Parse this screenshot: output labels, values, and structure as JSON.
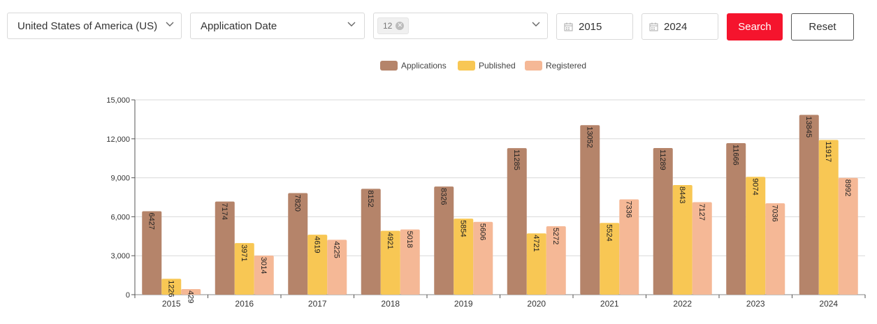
{
  "filters": {
    "country": "United States of America (US)",
    "date_type": "Application Date",
    "class_tag": "12",
    "date_from": "2015",
    "date_to": "2024"
  },
  "buttons": {
    "search": "Search",
    "reset": "Reset"
  },
  "icons": {
    "dropdown": "chevron-down-icon",
    "tag_remove": "close-circle-icon",
    "date": "calendar-icon"
  },
  "colors": {
    "Applications": "#b5846a",
    "Published": "#f8c754",
    "Registered": "#f5b896",
    "search_button": "#f5142d"
  },
  "chart_data": {
    "type": "bar",
    "title": "",
    "xlabel": "",
    "ylabel": "",
    "categories": [
      "2015",
      "2016",
      "2017",
      "2018",
      "2019",
      "2020",
      "2021",
      "2022",
      "2023",
      "2024"
    ],
    "series": [
      {
        "name": "Applications",
        "values": [
          6427,
          7174,
          7820,
          8152,
          8326,
          11285,
          13052,
          11289,
          11666,
          13845
        ]
      },
      {
        "name": "Published",
        "values": [
          1226,
          3971,
          4619,
          4921,
          5854,
          4721,
          5524,
          8443,
          9074,
          11917
        ]
      },
      {
        "name": "Registered",
        "values": [
          429,
          3014,
          4225,
          5018,
          5606,
          5272,
          7336,
          7127,
          7036,
          8992
        ]
      }
    ],
    "ylim": [
      0,
      15000
    ],
    "yticks": [
      "0",
      "3,000",
      "6,000",
      "9,000",
      "12,000",
      "15,000"
    ],
    "ytick_values": [
      0,
      3000,
      6000,
      9000,
      12000,
      15000
    ],
    "grid": true,
    "legend": "top-center",
    "data_labels": true
  }
}
